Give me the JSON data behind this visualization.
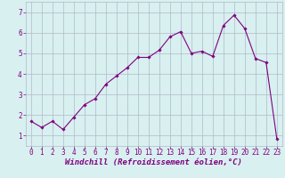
{
  "x": [
    0,
    1,
    2,
    3,
    4,
    5,
    6,
    7,
    8,
    9,
    10,
    11,
    12,
    13,
    14,
    15,
    16,
    17,
    18,
    19,
    20,
    21,
    22,
    23
  ],
  "y": [
    1.7,
    1.4,
    1.7,
    1.3,
    1.9,
    2.5,
    2.8,
    3.5,
    3.9,
    4.3,
    4.8,
    4.8,
    5.15,
    5.8,
    6.05,
    5.0,
    5.1,
    4.85,
    6.35,
    6.85,
    6.2,
    4.75,
    4.55,
    0.85
  ],
  "line_color": "#800080",
  "marker": "D",
  "marker_size": 1.8,
  "bg_color": "#d8f0f0",
  "grid_color": "#b0b8c8",
  "xlabel": "Windchill (Refroidissement éolien,°C)",
  "xlabel_color": "#800080",
  "xlabel_fontsize": 6.5,
  "tick_color": "#800080",
  "tick_fontsize": 5.5,
  "ylim": [
    0.5,
    7.5
  ],
  "xlim": [
    -0.5,
    23.5
  ],
  "yticks": [
    1,
    2,
    3,
    4,
    5,
    6,
    7
  ],
  "xticks": [
    0,
    1,
    2,
    3,
    4,
    5,
    6,
    7,
    8,
    9,
    10,
    11,
    12,
    13,
    14,
    15,
    16,
    17,
    18,
    19,
    20,
    21,
    22,
    23
  ]
}
